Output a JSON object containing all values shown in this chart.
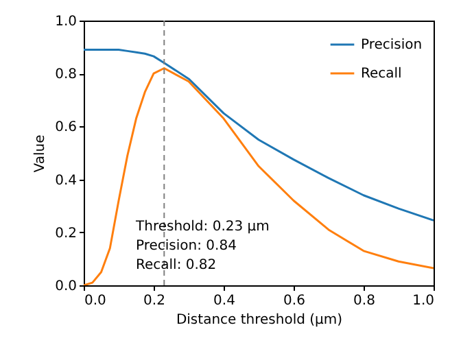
{
  "chart_data": {
    "type": "line",
    "xlabel": "Distance threshold (µm)",
    "ylabel": "Value",
    "x": [
      0,
      0.025,
      0.05,
      0.075,
      0.1,
      0.125,
      0.15,
      0.175,
      0.2,
      0.23,
      0.3,
      0.4,
      0.5,
      0.6,
      0.7,
      0.8,
      0.9,
      1.0
    ],
    "series": [
      {
        "name": "Precision",
        "color": "#1f77b4",
        "values": [
          0.89,
          0.89,
          0.89,
          0.89,
          0.89,
          0.885,
          0.88,
          0.875,
          0.865,
          0.84,
          0.78,
          0.65,
          0.55,
          0.475,
          0.405,
          0.34,
          0.29,
          0.245
        ]
      },
      {
        "name": "Recall",
        "color": "#ff7f0e",
        "values": [
          0,
          0.01,
          0.05,
          0.14,
          0.32,
          0.49,
          0.63,
          0.73,
          0.8,
          0.82,
          0.77,
          0.63,
          0.45,
          0.32,
          0.21,
          0.13,
          0.09,
          0.065
        ]
      }
    ],
    "xlim": [
      0,
      1
    ],
    "ylim": [
      0,
      1
    ],
    "xticks": [
      {
        "value": 0,
        "label": "0.0"
      },
      0.2,
      0.4,
      0.6,
      0.8,
      {
        "value": 1,
        "label": "1.0"
      }
    ],
    "yticks": [
      {
        "value": 0,
        "label": "0.0"
      },
      0.2,
      0.4,
      0.6,
      0.8,
      {
        "value": 1,
        "label": "1.0"
      }
    ],
    "grid": false,
    "legend": "top right",
    "ref_lines": [
      {
        "axis": "x",
        "value": 0.23,
        "color": "#808080",
        "line_style": "dashed"
      }
    ],
    "annotations": [
      "Threshold: 0.23 µm",
      "Precision: 0.84",
      "Recall: 0.82"
    ]
  }
}
